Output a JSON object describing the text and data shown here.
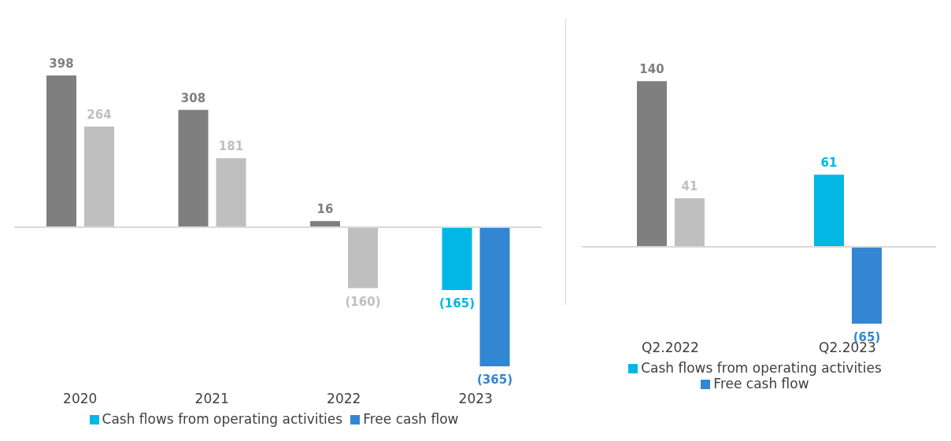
{
  "chart_data": [
    {
      "type": "bar",
      "categories": [
        "2020",
        "2021",
        "2022",
        "2023"
      ],
      "series": [
        {
          "name": "Cash flows from operating activities",
          "color": "#00b7e5",
          "colors": [
            "#7f7f7f",
            "#7f7f7f",
            "#7f7f7f",
            "#00b7e5"
          ],
          "values": [
            398,
            308,
            16,
            -165
          ],
          "value_labels": [
            "398",
            "308",
            "16",
            "(165)"
          ]
        },
        {
          "name": "Free cash flow",
          "color": "#3386d1",
          "colors": [
            "#bfbfbf",
            "#bfbfbf",
            "#bfbfbf",
            "#3386d1"
          ],
          "values": [
            264,
            181,
            -160,
            -365
          ],
          "value_labels": [
            "264",
            "181",
            "(160)",
            "(365)"
          ]
        }
      ],
      "legend": "bottom"
    },
    {
      "type": "bar",
      "categories": [
        "Q2.2022",
        "Q2.2023"
      ],
      "series": [
        {
          "name": "Cash flows from operating activities",
          "color": "#00b7e5",
          "colors": [
            "#7f7f7f",
            "#00b7e5"
          ],
          "values": [
            140,
            61
          ],
          "value_labels": [
            "140",
            "61"
          ]
        },
        {
          "name": "Free cash flow",
          "color": "#3386d1",
          "colors": [
            "#bfbfbf",
            "#3386d1"
          ],
          "values": [
            41,
            -65
          ],
          "value_labels": [
            "41",
            "(65)"
          ]
        }
      ],
      "legend": "bottom"
    }
  ]
}
